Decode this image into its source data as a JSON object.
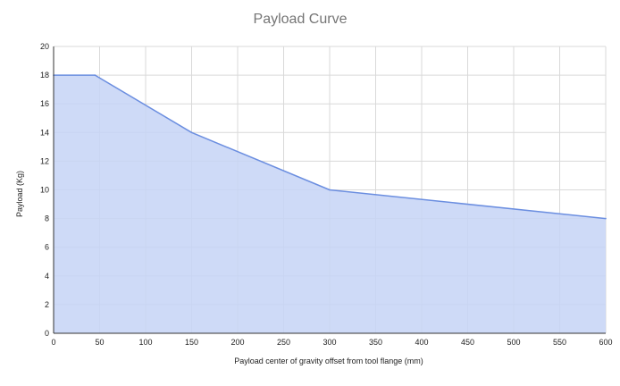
{
  "chart_data": {
    "type": "area",
    "title": "Payload Curve",
    "xlabel": "Payload center of gravity offset from tool flange (mm)",
    "ylabel": "Payload (Kg)",
    "xlim": [
      0,
      600
    ],
    "ylim": [
      0,
      20
    ],
    "x_ticks": [
      "0",
      "50",
      "100",
      "150",
      "200",
      "250",
      "300",
      "350",
      "400",
      "450",
      "500",
      "550",
      "600"
    ],
    "y_ticks": [
      "0",
      "2",
      "4",
      "6",
      "8",
      "10",
      "12",
      "14",
      "16",
      "18",
      "20"
    ],
    "grid": true,
    "legend": "none",
    "series": [
      {
        "x": [
          0,
          45,
          150,
          300,
          600
        ],
        "y": [
          18,
          18,
          14,
          10,
          8
        ]
      }
    ],
    "colors": {
      "line": "#6b8ee0",
      "fill": "#c5d3f6",
      "grid": "#d9d9d9",
      "axis": "#333333",
      "title": "#757575"
    }
  }
}
